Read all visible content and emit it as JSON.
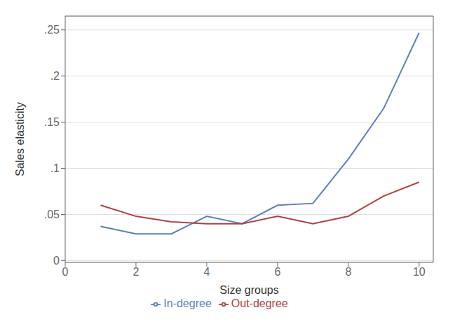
{
  "chart_data": {
    "type": "line",
    "x": [
      1,
      2,
      3,
      4,
      5,
      6,
      7,
      8,
      9,
      10
    ],
    "series": [
      {
        "name": "In-degree",
        "color": "#5b7fbe",
        "values": [
          0.037,
          0.029,
          0.029,
          0.048,
          0.04,
          0.06,
          0.062,
          0.11,
          0.165,
          0.247
        ]
      },
      {
        "name": "Out-degree",
        "color": "#b04040",
        "values": [
          0.06,
          0.048,
          0.042,
          0.04,
          0.04,
          0.048,
          0.04,
          0.048,
          0.07,
          0.085
        ]
      }
    ],
    "xlabel": "Size groups",
    "ylabel": "Sales elasticity",
    "xlim": [
      0,
      10.4
    ],
    "ylim": [
      -0.002,
      0.265
    ],
    "xticks": [
      0,
      2,
      4,
      6,
      8,
      10
    ],
    "yticks": [
      0,
      {
        "value": 0.05,
        "label": ".05"
      },
      {
        "value": 0.1,
        "label": ".1"
      },
      {
        "value": 0.15,
        "label": ".15"
      },
      {
        "value": 0.2,
        "label": ".2"
      },
      {
        "value": 0.25,
        "label": ".25"
      }
    ],
    "grid": "y",
    "legend": "bottom"
  }
}
